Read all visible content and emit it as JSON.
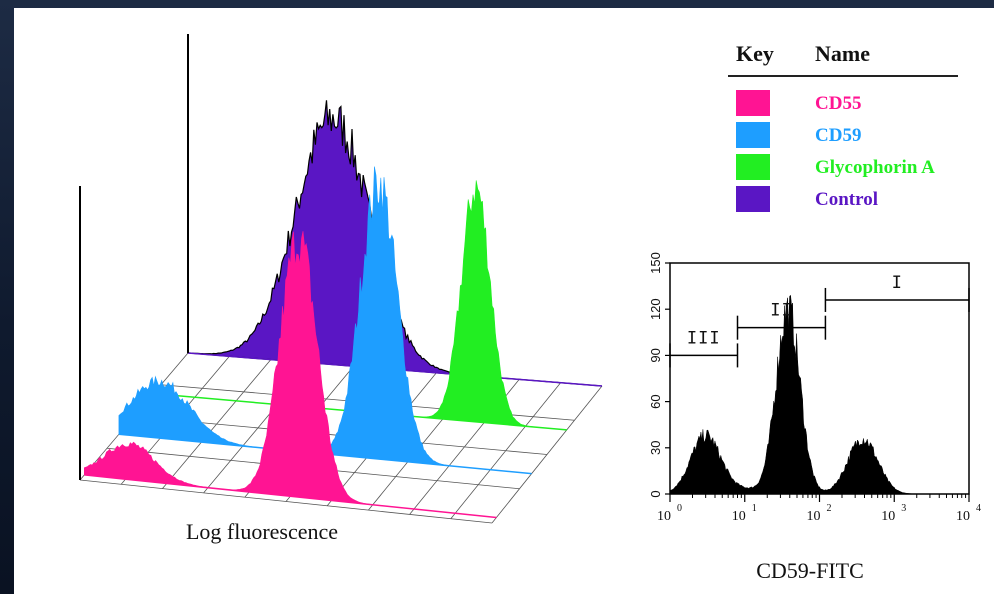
{
  "chart_data": [
    {
      "type": "area",
      "xlabel": "Log fluorescence",
      "legend": {
        "placement": "top-right",
        "header": [
          "Key",
          "Name"
        ],
        "entries": [
          {
            "name": "CD55",
            "color": "#ff1493"
          },
          {
            "name": "CD59",
            "color": "#1e9eff"
          },
          {
            "name": "Glycophorin A",
            "color": "#22ee22"
          },
          {
            "name": "Control",
            "color": "#5a16c4"
          }
        ]
      },
      "series": [
        {
          "name": "Control",
          "color": "#5a16c4",
          "peaks": [
            {
              "x": 0.35,
              "h": 0.82,
              "w": 0.09
            }
          ]
        },
        {
          "name": "Glycophorin A",
          "color": "#22ee22",
          "peaks": [
            {
              "x": 0.78,
              "h": 0.78,
              "w": 0.035
            }
          ]
        },
        {
          "name": "CD59",
          "color": "#1e9eff",
          "peaks": [
            {
              "x": 0.1,
              "h": 0.19,
              "w": 0.07
            },
            {
              "x": 0.63,
              "h": 0.92,
              "w": 0.045
            }
          ]
        },
        {
          "name": "CD55",
          "color": "#ff1493",
          "peaks": [
            {
              "x": 0.11,
              "h": 0.12,
              "w": 0.06
            },
            {
              "x": 0.52,
              "h": 0.86,
              "w": 0.045
            }
          ]
        }
      ]
    },
    {
      "type": "area",
      "xlabel": "CD59-FITC",
      "x_scale": "log",
      "xlim": [
        1,
        10000
      ],
      "ylim": [
        0,
        150
      ],
      "x_ticks": [
        {
          "base": "10",
          "exp": "0",
          "value": 1
        },
        {
          "base": "10",
          "exp": "1",
          "value": 10
        },
        {
          "base": "10",
          "exp": "2",
          "value": 100
        },
        {
          "base": "10",
          "exp": "3",
          "value": 1000
        },
        {
          "base": "10",
          "exp": "4",
          "value": 10000
        }
      ],
      "y_ticks": [
        "0",
        "30",
        "60",
        "90",
        "120",
        "150"
      ],
      "y_tick_values": [
        0,
        30,
        60,
        90,
        120,
        150
      ],
      "gates": [
        {
          "label": "III",
          "x_start": 1,
          "x_end": 8,
          "y": 90
        },
        {
          "label": "II",
          "x_start": 8,
          "x_end": 120,
          "y": 108
        },
        {
          "label": "I",
          "x_start": 120,
          "x_end": 10000,
          "y": 126
        }
      ],
      "peaks": [
        {
          "x": 3,
          "y": 38
        },
        {
          "x": 38,
          "y": 120
        },
        {
          "x": 380,
          "y": 36
        }
      ]
    }
  ]
}
